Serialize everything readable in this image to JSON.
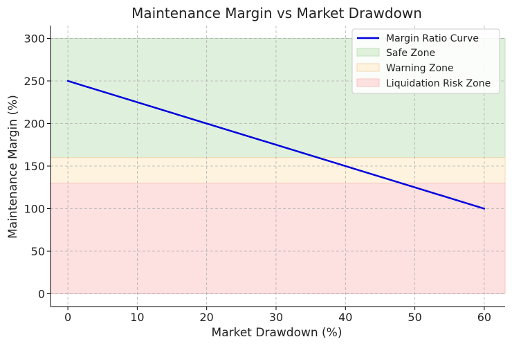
{
  "chart_data": {
    "type": "line",
    "title": "Maintenance Margin vs Market Drawdown",
    "xlabel": "Market Drawdown (%)",
    "ylabel": "Maintenance Margin (%)",
    "xlim": [
      -2.5,
      63
    ],
    "ylim": [
      -15,
      315
    ],
    "xticks": [
      0,
      10,
      20,
      30,
      40,
      50,
      60
    ],
    "yticks": [
      0,
      50,
      100,
      150,
      200,
      250,
      300
    ],
    "grid": true,
    "legend_position": "top-right",
    "series": [
      {
        "name": "Margin Ratio Curve",
        "color": "#0000dd",
        "x": [
          0,
          60
        ],
        "y": [
          250,
          100
        ]
      }
    ],
    "zones": [
      {
        "name": "Safe Zone",
        "y_from": 160,
        "y_to": 300,
        "color": "#dff0dc",
        "edge_color": "#c5e2c0"
      },
      {
        "name": "Warning Zone",
        "y_from": 130,
        "y_to": 160,
        "color": "#fdf3df",
        "edge_color": "#f2d9b3"
      },
      {
        "name": "Liquidation Risk Zone",
        "y_from": 0,
        "y_to": 130,
        "color": "#fde0e0",
        "edge_color": "#f5c4c4"
      }
    ]
  }
}
